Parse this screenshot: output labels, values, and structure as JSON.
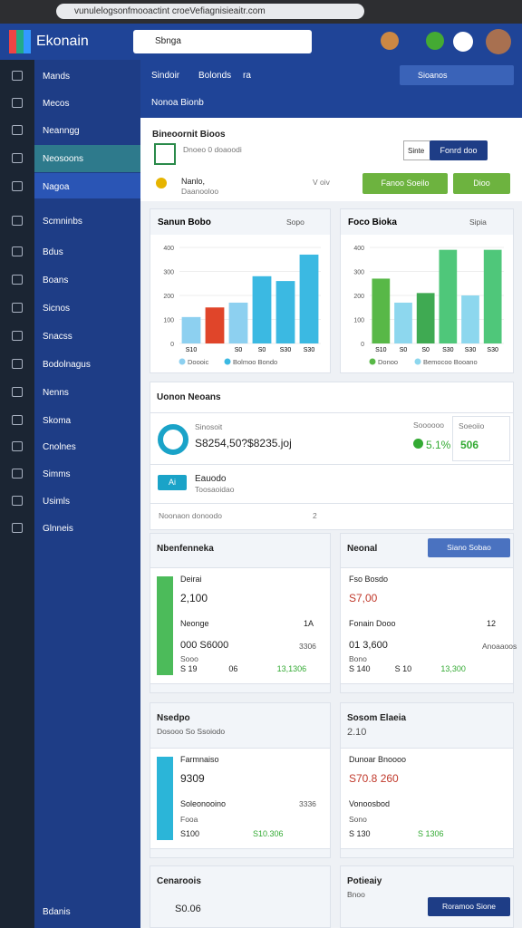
{
  "browser": {
    "url": "vunulelogsonfmooactint croeVefiagnisieaitr.com"
  },
  "header": {
    "logo": "Ekonain",
    "search": "Sbnga"
  },
  "sidebar": {
    "items": [
      "Mands",
      "Mecos",
      "Neanngg",
      "Neosoons",
      "Nagoa",
      "Scmninbs",
      "Bdus",
      "Boans",
      "Sicnos",
      "Snacss",
      "Bodolnagus",
      "Nenns",
      "Skoma",
      "Cnolnes",
      "Simms",
      "Usimls",
      "Glnneis"
    ],
    "footer": "Bdanis"
  },
  "topbar": {
    "tabs": [
      "Sindoir",
      "Bolonds",
      "ra"
    ],
    "button": "Sioanos",
    "subtitle": "Nonoa Bionb"
  },
  "summary": {
    "title": "Bineoornit Bioos",
    "subtitle": "Dnoeo 0 doaoodi",
    "user": "Nanlo,",
    "user_sub": "Daanooloo",
    "filter": "V oiv",
    "select": "Sinte",
    "select2": "Fonrd doo",
    "button1": "Fanoo Soeilo",
    "button2": "Dioo"
  },
  "chart_data": [
    {
      "type": "bar",
      "title": "Sanun Bobo",
      "menu": "Sopo",
      "categories": [
        "S10",
        null,
        "S0",
        "S0",
        "S30",
        "S30"
      ],
      "values": [
        110,
        150,
        170,
        280,
        260,
        370
      ],
      "colors": [
        "#8dd0f0",
        "#e0452a",
        "#8dd0f0",
        "#3bb9e2",
        "#3bb9e2",
        "#3bb9e2"
      ],
      "ylim": [
        0,
        400
      ],
      "yticks": [
        0,
        100,
        200,
        300,
        400
      ],
      "grid": true,
      "legend": [
        {
          "name": "Doooic",
          "color": "#8dd0f0"
        },
        {
          "name": "Bolmoo Bondo",
          "color": "#3bb9e2"
        }
      ]
    },
    {
      "type": "bar",
      "title": "Foco Bioka",
      "menu": "Sipia",
      "categories": [
        "S10",
        "S0",
        "S0",
        "S30",
        "S30",
        "S30"
      ],
      "values": [
        270,
        170,
        210,
        390,
        200,
        390
      ],
      "colors": [
        "#58b847",
        "#8dd7ee",
        "#3faa52",
        "#4fc77a",
        "#8dd7ee",
        "#4fc77a"
      ],
      "ylim": [
        0,
        400
      ],
      "yticks": [
        0,
        100,
        200,
        300,
        400
      ],
      "grid": true,
      "legend": [
        {
          "name": "Donoo",
          "color": "#58b847"
        },
        {
          "name": "Bemocoo Booano",
          "color": "#8dd7ee"
        }
      ]
    }
  ],
  "overview": {
    "title": "Uonon Neoans",
    "metric_label": "Sinosoit",
    "metric": "S8254,50?$8235.joj",
    "badge_label": "Soooooo",
    "badge": "5.1%",
    "side_label": "Soeoiio",
    "side_value": "506",
    "row_tag": "Ai",
    "row_title": "Eauodo",
    "row_sub": "Toosaoidao",
    "footer": "Noonaon donoodo",
    "footer_num": "2"
  },
  "panels": [
    {
      "title": "Nbenfenneka",
      "label": "Deirai",
      "value": "2,100",
      "label2": "Neonge",
      "aux": "1A",
      "value2": "000 S6000",
      "aux2": "3306",
      "note": "Sooo",
      "foot": [
        "S 19",
        "06",
        "13,1306"
      ]
    },
    {
      "title": "Neonal",
      "button": "Siano Sobao",
      "label": "Fso Bosdo",
      "value": "S7,00",
      "label2": "Fonain Dooo",
      "aux": "12",
      "value2": "01 3,600",
      "aux2": "Anoaaoos",
      "note": "Bono",
      "foot": [
        "S 140",
        "S 10",
        "13,300"
      ]
    },
    {
      "title": "Nsedpo",
      "sub": "Dosooo So Ssoiodo",
      "label": "Farmnaiso",
      "value": "9309",
      "label2": "Soleonooino",
      "aux2": "3336",
      "note": "Fooa",
      "foot": [
        "S100",
        "S10.306"
      ]
    },
    {
      "title": "Sosom Elaeia",
      "sub": "2.10",
      "label": "Dunoar Bnoooo",
      "value": "S70.8 260",
      "label2": "Vonoosbod",
      "note": "Sono",
      "foot": [
        "S 130",
        "S 1306"
      ]
    },
    {
      "title": "Cenaroois",
      "value": "S0.06"
    },
    {
      "title": "Potieaiy",
      "sub": "Bnoo",
      "button": "Roramoo Sione"
    }
  ]
}
